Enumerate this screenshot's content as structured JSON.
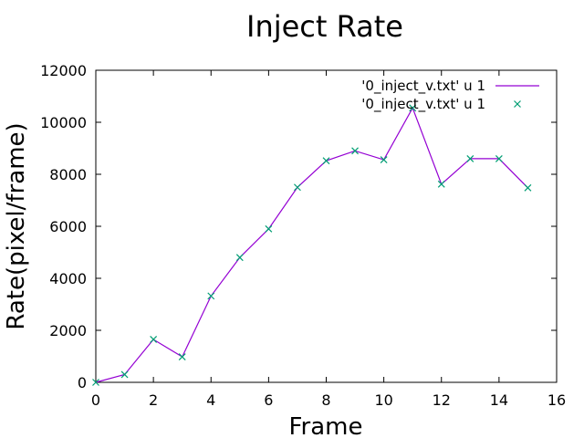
{
  "chart_data": {
    "type": "line",
    "title": "Inject Rate",
    "xlabel": "Frame",
    "ylabel": "Rate(pixel/frame)",
    "xlim": [
      0,
      16
    ],
    "ylim": [
      0,
      12000
    ],
    "xticks": [
      0,
      2,
      4,
      6,
      8,
      10,
      12,
      14,
      16
    ],
    "yticks": [
      0,
      2000,
      4000,
      6000,
      8000,
      10000,
      12000
    ],
    "grid": false,
    "legend_position": "top-right",
    "x": [
      0,
      1,
      2,
      3,
      4,
      5,
      6,
      7,
      8,
      9,
      10,
      11,
      12,
      13,
      14,
      15
    ],
    "series": [
      {
        "name": "'0_inject_v.txt' u 1",
        "style": "lines",
        "color": "#9400d3",
        "values": [
          0,
          300,
          1650,
          980,
          3320,
          4800,
          5900,
          7500,
          8520,
          8900,
          8560,
          10550,
          7620,
          8600,
          8600,
          7480
        ]
      },
      {
        "name": "'0_inject_v.txt' u 1",
        "style": "points",
        "marker": "x",
        "color": "#009e73",
        "values": [
          0,
          300,
          1650,
          980,
          3320,
          4800,
          5900,
          7500,
          8520,
          8900,
          8560,
          10550,
          7620,
          8600,
          8600,
          7480
        ]
      }
    ]
  }
}
